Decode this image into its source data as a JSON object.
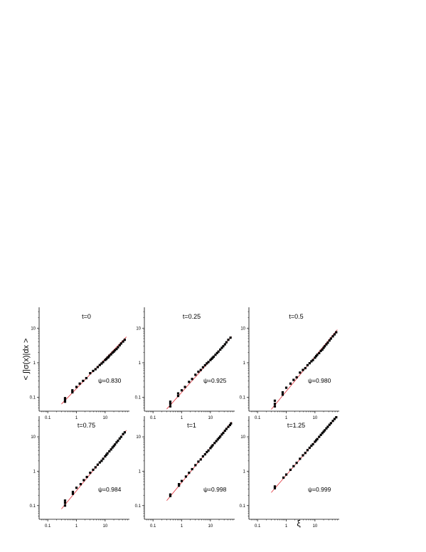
{
  "figure": {
    "ylabel": "< ∫|σ(x)|dx >",
    "xlabel": "ξ",
    "tick_labels": [
      "0.1",
      "1",
      "10"
    ],
    "marker_color": "#000000",
    "fit_color": "#e0303a"
  },
  "chart_data": [
    {
      "type": "scatter",
      "title": "t=0",
      "annotation": "ψ=0.830",
      "xscale": "log",
      "yscale": "log",
      "xlim": [
        0.05,
        70
      ],
      "ylim": [
        0.04,
        40
      ],
      "fit": {
        "x": [
          0.3,
          55
        ],
        "y": [
          0.064,
          5.6
        ]
      },
      "points": {
        "x": [
          0.4,
          0.4,
          0.4,
          0.72,
          0.72,
          1.0,
          1.3,
          1.7,
          2.2,
          3.0,
          3.8,
          4.6,
          5.5,
          6.5,
          7.5,
          8.5,
          10,
          11,
          12,
          13,
          14,
          16,
          18,
          20,
          22,
          25,
          28,
          32,
          36,
          42,
          48
        ],
        "y": [
          0.075,
          0.085,
          0.095,
          0.14,
          0.16,
          0.2,
          0.25,
          0.3,
          0.36,
          0.5,
          0.58,
          0.65,
          0.75,
          0.86,
          0.95,
          1.05,
          1.2,
          1.28,
          1.4,
          1.45,
          1.6,
          1.75,
          1.95,
          2.1,
          2.3,
          2.5,
          2.8,
          3.2,
          3.6,
          4.1,
          4.6
        ]
      }
    },
    {
      "type": "scatter",
      "title": "t=0.25",
      "annotation": "ψ=0.925",
      "xscale": "log",
      "yscale": "log",
      "xlim": [
        0.05,
        70
      ],
      "ylim": [
        0.04,
        40
      ],
      "fit": {
        "x": [
          0.3,
          55
        ],
        "y": [
          0.046,
          5.7
        ]
      },
      "points": {
        "x": [
          0.4,
          0.4,
          0.4,
          0.75,
          0.75,
          1.0,
          1.3,
          1.8,
          2.3,
          3.0,
          3.8,
          4.6,
          5.5,
          6.5,
          7.5,
          8.5,
          10,
          11,
          12,
          13,
          15,
          17,
          19,
          22,
          25,
          28,
          32,
          36,
          42,
          50
        ],
        "y": [
          0.055,
          0.065,
          0.075,
          0.11,
          0.13,
          0.16,
          0.2,
          0.28,
          0.34,
          0.45,
          0.55,
          0.62,
          0.74,
          0.85,
          0.96,
          1.05,
          1.2,
          1.3,
          1.4,
          1.5,
          1.7,
          1.9,
          2.1,
          2.4,
          2.7,
          3.0,
          3.4,
          3.9,
          4.6,
          5.3
        ]
      }
    },
    {
      "type": "scatter",
      "title": "t=0.5",
      "annotation": "ψ=0.980",
      "xscale": "log",
      "yscale": "log",
      "xlim": [
        0.05,
        70
      ],
      "ylim": [
        0.04,
        40
      ],
      "fit": {
        "x": [
          0.3,
          60
        ],
        "y": [
          0.045,
          9.0
        ]
      },
      "points": {
        "x": [
          0.4,
          0.4,
          0.4,
          0.75,
          0.75,
          1.0,
          1.4,
          1.8,
          2.3,
          3.0,
          3.8,
          4.6,
          5.5,
          6.5,
          7.5,
          8.5,
          10,
          11,
          12,
          14,
          16,
          18,
          20,
          22,
          25,
          28,
          32,
          36,
          42,
          48,
          55
        ],
        "y": [
          0.055,
          0.065,
          0.08,
          0.12,
          0.14,
          0.19,
          0.25,
          0.32,
          0.38,
          0.52,
          0.62,
          0.7,
          0.85,
          0.97,
          1.1,
          1.2,
          1.4,
          1.55,
          1.7,
          1.9,
          2.2,
          2.4,
          2.7,
          3.0,
          3.4,
          3.8,
          4.4,
          5.0,
          5.8,
          6.6,
          7.6
        ]
      }
    },
    {
      "type": "scatter",
      "title": "t=0.75",
      "annotation": "ψ=0.984",
      "xscale": "log",
      "yscale": "log",
      "xlim": [
        0.05,
        70
      ],
      "ylim": [
        0.04,
        40
      ],
      "fit": {
        "x": [
          0.3,
          55
        ],
        "y": [
          0.08,
          15.5
        ]
      },
      "points": {
        "x": [
          0.4,
          0.4,
          0.4,
          0.75,
          0.75,
          1.0,
          1.4,
          1.8,
          2.3,
          3.0,
          3.8,
          4.6,
          5.5,
          6.5,
          7.5,
          8.5,
          10,
          11,
          12,
          14,
          16,
          18,
          20,
          22,
          25,
          28,
          32,
          36,
          42,
          48
        ],
        "y": [
          0.1,
          0.12,
          0.14,
          0.22,
          0.25,
          0.33,
          0.42,
          0.55,
          0.68,
          0.9,
          1.1,
          1.3,
          1.55,
          1.8,
          2.0,
          2.3,
          2.7,
          3.0,
          3.3,
          3.8,
          4.3,
          4.9,
          5.4,
          6.0,
          6.9,
          7.7,
          8.9,
          10,
          12,
          13.5
        ]
      }
    },
    {
      "type": "scatter",
      "title": "t=1",
      "annotation": "ψ=0.998",
      "xscale": "log",
      "yscale": "log",
      "xlim": [
        0.05,
        70
      ],
      "ylim": [
        0.04,
        40
      ],
      "fit": {
        "x": [
          0.3,
          55
        ],
        "y": [
          0.14,
          27
        ]
      },
      "points": {
        "x": [
          0.4,
          0.4,
          0.8,
          0.8,
          1.0,
          1.4,
          1.8,
          2.3,
          3.0,
          3.8,
          4.6,
          5.5,
          6.5,
          7.5,
          8.5,
          10,
          11,
          12,
          14,
          16,
          18,
          20,
          22,
          25,
          28,
          32,
          36,
          42,
          48,
          52
        ],
        "y": [
          0.19,
          0.21,
          0.38,
          0.42,
          0.52,
          0.7,
          0.9,
          1.15,
          1.5,
          1.9,
          2.2,
          2.7,
          3.1,
          3.6,
          4.0,
          4.7,
          5.2,
          5.7,
          6.6,
          7.5,
          8.4,
          9.3,
          10.2,
          11.7,
          13,
          15,
          17,
          19.5,
          22,
          24.5
        ]
      }
    },
    {
      "type": "scatter",
      "title": "t=1.25",
      "annotation": "ψ=0.999",
      "xscale": "log",
      "yscale": "log",
      "xlim": [
        0.05,
        70
      ],
      "ylim": [
        0.04,
        40
      ],
      "fit": {
        "x": [
          0.3,
          60
        ],
        "y": [
          0.24,
          40
        ]
      },
      "points": {
        "x": [
          0.4,
          0.4,
          0.8,
          1.0,
          1.4,
          1.8,
          2.3,
          3.0,
          3.8,
          4.6,
          5.5,
          6.5,
          7.5,
          8.5,
          10,
          11,
          12,
          14,
          16,
          18,
          20,
          22,
          25,
          28,
          32,
          36,
          42,
          48,
          55
        ],
        "y": [
          0.32,
          0.36,
          0.65,
          0.8,
          1.1,
          1.4,
          1.75,
          2.3,
          2.9,
          3.4,
          4.1,
          4.8,
          5.5,
          6.1,
          7.2,
          7.9,
          8.6,
          10,
          11.4,
          12.8,
          14.1,
          15.5,
          17.6,
          19.6,
          22.4,
          25,
          29,
          33,
          37
        ]
      }
    }
  ]
}
